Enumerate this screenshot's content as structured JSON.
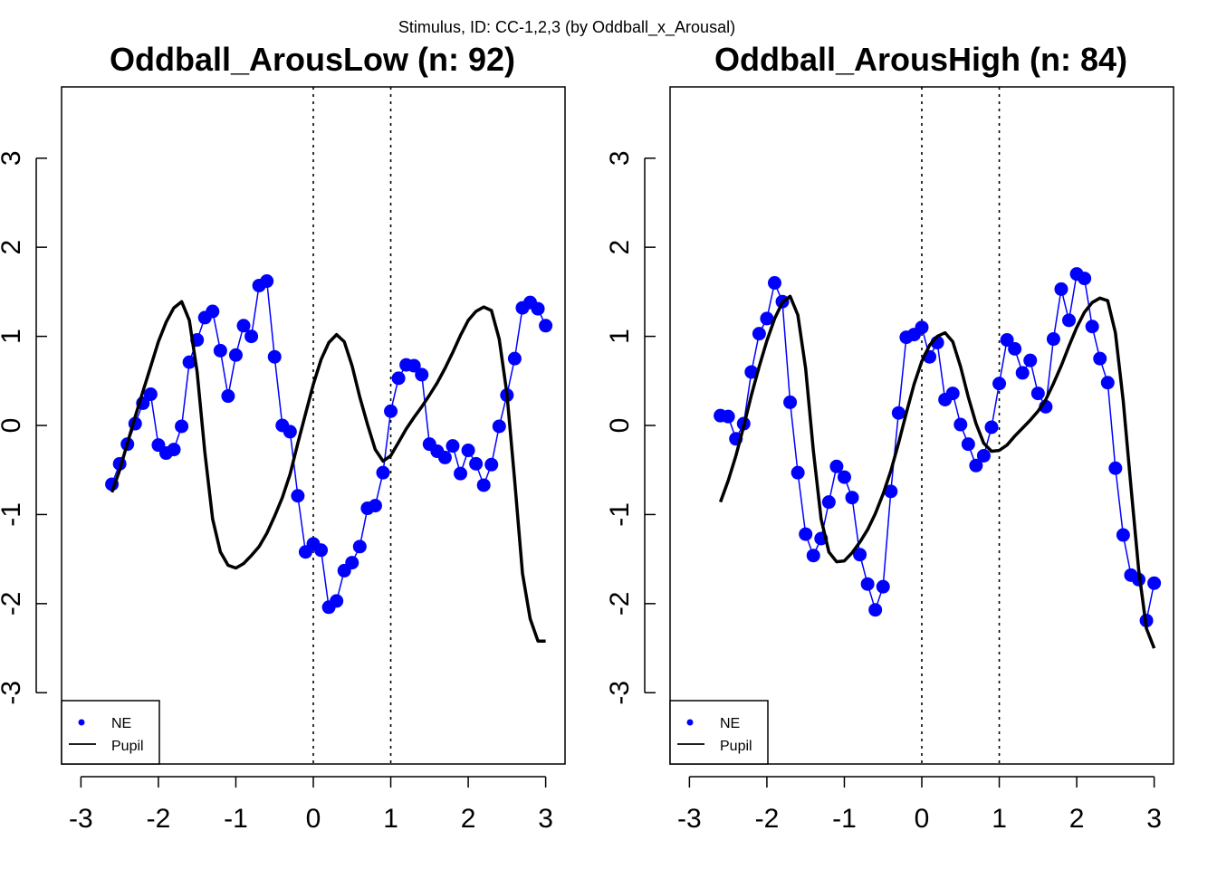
{
  "suptitle": "Stimulus, ID: CC-1,2,3  (by Oddball_x_Arousal)",
  "colors": {
    "ne": "#0000ff",
    "pupil": "#000000"
  },
  "chart_data": [
    {
      "type": "line",
      "title": "Oddball_ArousLow (n: 92)",
      "xlabel": "",
      "ylabel": "",
      "xlim": [
        -3.25,
        3.25
      ],
      "ylim": [
        -3.8,
        3.8
      ],
      "xticks": [
        -3,
        -2,
        -1,
        0,
        1,
        2,
        3
      ],
      "xtick_labels": [
        "-3",
        "-2",
        "-1",
        "0",
        "1",
        "2",
        "3"
      ],
      "yticks": [
        -3,
        -2,
        -1,
        0,
        1,
        2,
        3
      ],
      "ytick_labels": [
        "-3",
        "-2",
        "-1",
        "0",
        "1",
        "2",
        "3"
      ],
      "vlines": [
        0,
        1
      ],
      "legend": {
        "position": "bottom-left",
        "entries": [
          "NE",
          "Pupil"
        ]
      },
      "series": [
        {
          "name": "NE",
          "style": "line+points",
          "x": [
            -2.6,
            -2.5,
            -2.4,
            -2.3,
            -2.2,
            -2.1,
            -2.0,
            -1.9,
            -1.8,
            -1.7,
            -1.6,
            -1.5,
            -1.4,
            -1.3,
            -1.2,
            -1.1,
            -1.0,
            -0.9,
            -0.8,
            -0.7,
            -0.6,
            -0.5,
            -0.4,
            -0.3,
            -0.2,
            -0.1,
            0.0,
            0.1,
            0.2,
            0.3,
            0.4,
            0.5,
            0.6,
            0.7,
            0.8,
            0.9,
            1.0,
            1.1,
            1.2,
            1.3,
            1.4,
            1.5,
            1.6,
            1.7,
            1.8,
            1.9,
            2.0,
            2.1,
            2.2,
            2.3,
            2.4,
            2.5,
            2.6,
            2.7,
            2.8,
            2.9,
            3.0
          ],
          "y": [
            -0.66,
            -0.43,
            -0.21,
            0.02,
            0.25,
            0.35,
            -0.22,
            -0.31,
            -0.27,
            -0.01,
            0.71,
            0.96,
            1.21,
            1.28,
            0.84,
            0.33,
            0.79,
            1.12,
            1.0,
            1.57,
            1.62,
            0.77,
            0.0,
            -0.07,
            -0.79,
            -1.42,
            -1.33,
            -1.4,
            -2.04,
            -1.97,
            -1.63,
            -1.54,
            -1.36,
            -0.93,
            -0.9,
            -0.53,
            0.16,
            0.53,
            0.68,
            0.67,
            0.57,
            -0.21,
            -0.29,
            -0.36,
            -0.23,
            -0.54,
            -0.28,
            -0.43,
            -0.67,
            -0.44,
            -0.01,
            0.34,
            0.75,
            1.32,
            1.38,
            1.31,
            1.12
          ]
        },
        {
          "name": "Pupil",
          "style": "line",
          "x": [
            -2.6,
            -2.5,
            -2.4,
            -2.3,
            -2.2,
            -2.1,
            -2.0,
            -1.9,
            -1.8,
            -1.7,
            -1.6,
            -1.5,
            -1.4,
            -1.3,
            -1.2,
            -1.1,
            -1.0,
            -0.9,
            -0.8,
            -0.7,
            -0.6,
            -0.5,
            -0.4,
            -0.3,
            -0.2,
            -0.1,
            0.0,
            0.1,
            0.2,
            0.3,
            0.4,
            0.5,
            0.6,
            0.7,
            0.8,
            0.9,
            1.0,
            1.1,
            1.2,
            1.3,
            1.4,
            1.5,
            1.6,
            1.7,
            1.8,
            1.9,
            2.0,
            2.1,
            2.2,
            2.3,
            2.4,
            2.5,
            2.6,
            2.7,
            2.8,
            2.9,
            3.0
          ],
          "y": [
            -0.75,
            -0.5,
            -0.2,
            0.1,
            0.38,
            0.66,
            0.94,
            1.16,
            1.32,
            1.39,
            1.18,
            0.6,
            -0.3,
            -1.05,
            -1.42,
            -1.57,
            -1.6,
            -1.55,
            -1.46,
            -1.36,
            -1.21,
            -1.02,
            -0.81,
            -0.55,
            -0.2,
            0.13,
            0.46,
            0.74,
            0.93,
            1.02,
            0.94,
            0.67,
            0.32,
            0.01,
            -0.27,
            -0.4,
            -0.34,
            -0.19,
            -0.04,
            0.09,
            0.21,
            0.34,
            0.48,
            0.64,
            0.82,
            1.01,
            1.18,
            1.28,
            1.33,
            1.29,
            0.97,
            0.36,
            -0.62,
            -1.66,
            -2.17,
            -2.42,
            -2.42
          ]
        }
      ]
    },
    {
      "type": "line",
      "title": "Oddball_ArousHigh (n: 84)",
      "xlabel": "",
      "ylabel": "",
      "xlim": [
        -3.25,
        3.25
      ],
      "ylim": [
        -3.8,
        3.8
      ],
      "xticks": [
        -3,
        -2,
        -1,
        0,
        1,
        2,
        3
      ],
      "xtick_labels": [
        "-3",
        "-2",
        "-1",
        "0",
        "1",
        "2",
        "3"
      ],
      "yticks": [
        -3,
        -2,
        -1,
        0,
        1,
        2,
        3
      ],
      "ytick_labels": [
        "-3",
        "-2",
        "-1",
        "0",
        "1",
        "2",
        "3"
      ],
      "vlines": [
        0,
        1
      ],
      "legend": {
        "position": "bottom-left",
        "entries": [
          "NE",
          "Pupil"
        ]
      },
      "series": [
        {
          "name": "NE",
          "style": "line+points",
          "x": [
            -2.6,
            -2.5,
            -2.4,
            -2.3,
            -2.2,
            -2.1,
            -2.0,
            -1.9,
            -1.8,
            -1.7,
            -1.6,
            -1.5,
            -1.4,
            -1.3,
            -1.2,
            -1.1,
            -1.0,
            -0.9,
            -0.8,
            -0.7,
            -0.6,
            -0.5,
            -0.4,
            -0.3,
            -0.2,
            -0.1,
            0.0,
            0.1,
            0.2,
            0.3,
            0.4,
            0.5,
            0.6,
            0.7,
            0.8,
            0.9,
            1.0,
            1.1,
            1.2,
            1.3,
            1.4,
            1.5,
            1.6,
            1.7,
            1.8,
            1.9,
            2.0,
            2.1,
            2.2,
            2.3,
            2.4,
            2.5,
            2.6,
            2.7,
            2.8,
            2.9,
            3.0
          ],
          "y": [
            0.11,
            0.1,
            -0.15,
            0.02,
            0.6,
            1.03,
            1.2,
            1.6,
            1.39,
            0.26,
            -0.53,
            -1.22,
            -1.46,
            -1.27,
            -0.86,
            -0.46,
            -0.58,
            -0.81,
            -1.45,
            -1.78,
            -2.07,
            -1.81,
            -0.74,
            0.14,
            0.99,
            1.02,
            1.1,
            0.77,
            0.93,
            0.29,
            0.36,
            0.01,
            -0.21,
            -0.45,
            -0.34,
            -0.02,
            0.47,
            0.96,
            0.86,
            0.59,
            0.73,
            0.36,
            0.21,
            0.97,
            1.53,
            1.18,
            1.7,
            1.65,
            1.11,
            0.75,
            0.48,
            -0.48,
            -1.23,
            -1.68,
            -1.73,
            -2.19,
            -1.77
          ]
        },
        {
          "name": "Pupil",
          "style": "line",
          "x": [
            -2.6,
            -2.5,
            -2.4,
            -2.3,
            -2.2,
            -2.1,
            -2.0,
            -1.9,
            -1.8,
            -1.7,
            -1.6,
            -1.5,
            -1.4,
            -1.3,
            -1.2,
            -1.1,
            -1.0,
            -0.9,
            -0.8,
            -0.7,
            -0.6,
            -0.5,
            -0.4,
            -0.3,
            -0.2,
            -0.1,
            0.0,
            0.1,
            0.2,
            0.3,
            0.4,
            0.5,
            0.6,
            0.7,
            0.8,
            0.9,
            1.0,
            1.1,
            1.2,
            1.3,
            1.4,
            1.5,
            1.6,
            1.7,
            1.8,
            1.9,
            2.0,
            2.1,
            2.2,
            2.3,
            2.4,
            2.5,
            2.6,
            2.7,
            2.8,
            2.9,
            3.0
          ],
          "y": [
            -0.86,
            -0.62,
            -0.34,
            -0.01,
            0.34,
            0.66,
            0.95,
            1.2,
            1.38,
            1.45,
            1.24,
            0.64,
            -0.28,
            -1.05,
            -1.42,
            -1.53,
            -1.52,
            -1.43,
            -1.31,
            -1.17,
            -0.99,
            -0.77,
            -0.51,
            -0.2,
            0.14,
            0.46,
            0.72,
            0.9,
            1.0,
            1.04,
            0.94,
            0.66,
            0.32,
            0.02,
            -0.2,
            -0.29,
            -0.28,
            -0.22,
            -0.12,
            -0.03,
            0.06,
            0.16,
            0.29,
            0.47,
            0.67,
            0.89,
            1.1,
            1.27,
            1.38,
            1.43,
            1.4,
            1.04,
            0.28,
            -0.69,
            -1.62,
            -2.28,
            -2.5
          ]
        }
      ]
    }
  ]
}
